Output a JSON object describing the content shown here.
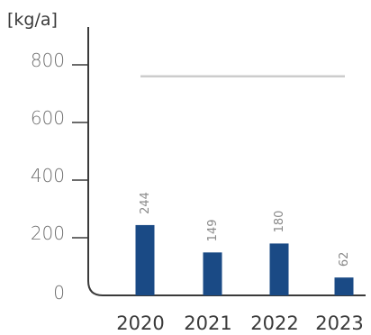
{
  "chart_data": {
    "type": "bar",
    "ylabel": "[kg/a]",
    "categories": [
      "2020",
      "2021",
      "2022",
      "2023"
    ],
    "values": [
      244,
      149,
      180,
      62
    ],
    "data_labels": [
      "244",
      "149",
      "180",
      "62"
    ],
    "ylim": [
      0,
      900
    ],
    "yticks": [
      0,
      200,
      400,
      600,
      800
    ],
    "ytick_labels": [
      "0",
      "200",
      "400",
      "600",
      "800"
    ],
    "reference_line": {
      "value": 760,
      "color": "#cccccc"
    },
    "bar_color": "#1a4a85",
    "axis_color": "#3a3a3a",
    "grid": false,
    "legend": "none"
  }
}
